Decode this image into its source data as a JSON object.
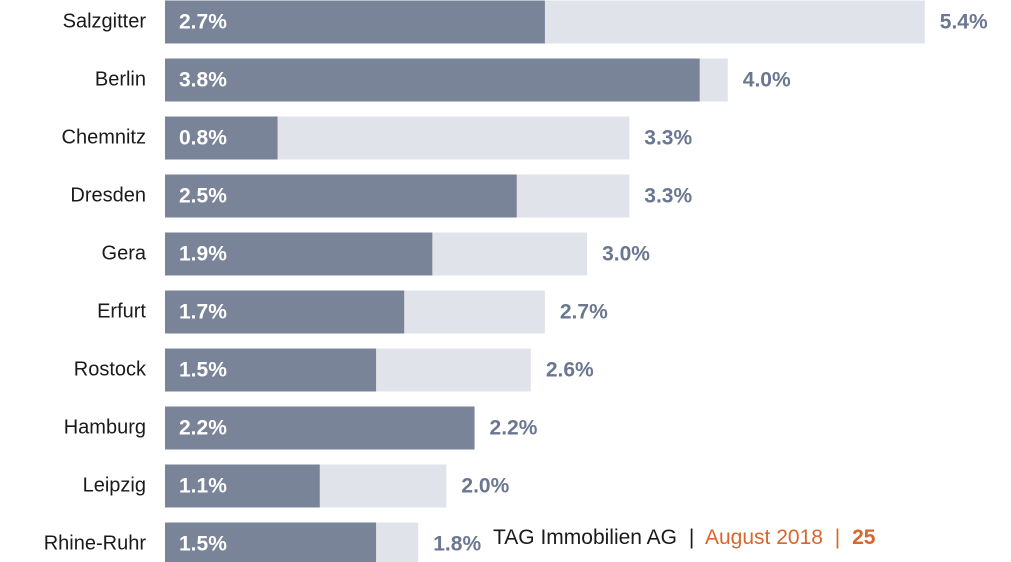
{
  "chart_data": {
    "type": "bar",
    "orientation": "horizontal",
    "categories": [
      "Salzgitter",
      "Berlin",
      "Chemnitz",
      "Dresden",
      "Gera",
      "Erfurt",
      "Rostock",
      "Hamburg",
      "Leipzig",
      "Rhine-Ruhr"
    ],
    "series": [
      {
        "color": "#e1e3ea",
        "values": [
          5.4,
          4.0,
          3.3,
          3.3,
          3.0,
          2.7,
          2.6,
          2.2,
          2.0,
          1.8
        ],
        "value_labels": [
          "5.4%",
          "4.0%",
          "3.3%",
          "3.3%",
          "3.0%",
          "2.7%",
          "2.6%",
          "2.2%",
          "2.0%",
          "1.8%"
        ]
      },
      {
        "color": "#7a8499",
        "values": [
          2.7,
          3.8,
          0.8,
          2.5,
          1.9,
          1.7,
          1.5,
          2.2,
          1.1,
          1.5
        ],
        "value_labels": [
          "2.7%",
          "3.8%",
          "0.8%",
          "2.5%",
          "1.9%",
          "1.7%",
          "1.5%",
          "2.2%",
          "1.1%",
          "1.5%"
        ]
      }
    ]
  },
  "footer": {
    "company": "TAG Immobilien AG",
    "separator": "|",
    "date": "August 2018",
    "page": "25"
  }
}
